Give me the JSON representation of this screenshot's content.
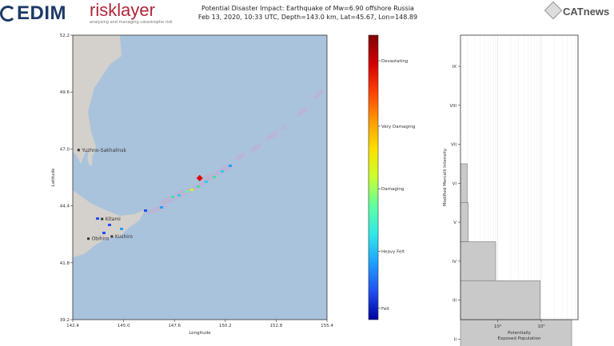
{
  "header": {
    "cedim_logo": "EDIM",
    "risklayer_logo": "risklayer",
    "risklayer_tagline": "analysing and managing catastrophe risk",
    "catnews_logo": "CATnews",
    "title_line1": "Potential Disaster Impact: Earthquake of Mw=6.90 offshore Russia",
    "title_line2": "Feb 13, 2020, 10:33 UTC, Depth=143.0 km, Lat=45.67, Lon=148.89"
  },
  "chart_data": [
    {
      "type": "map",
      "xlabel": "Longitude",
      "ylabel": "Latitude",
      "xlim": [
        142.4,
        155.4
      ],
      "ylim": [
        39.2,
        52.2
      ],
      "x_ticks": [
        "142.4",
        "145.0",
        "147.6",
        "150.2",
        "152.8",
        "155.4"
      ],
      "y_ticks": [
        "52.2",
        "49.6",
        "47.0",
        "44.4",
        "41.8",
        "39.2"
      ],
      "epicenter": {
        "lon": 148.89,
        "lat": 45.67
      },
      "place_labels": [
        {
          "name": "Yuzhno-Sakhalinsk",
          "lon": 142.7,
          "lat": 46.95
        },
        {
          "name": "Kitami",
          "lon": 143.9,
          "lat": 43.8
        },
        {
          "name": "Kushiro",
          "lon": 144.4,
          "lat": 43.0
        },
        {
          "name": "Obihiro",
          "lon": 143.2,
          "lat": 42.9
        }
      ],
      "colors": {
        "sea": "#a9c3dc",
        "land": "#d4d0cc"
      }
    },
    {
      "type": "colorbar",
      "labels": [
        "Devastating",
        "Very Damaging",
        "Damaging",
        "Heavy Felt",
        "Felt"
      ],
      "label_positions": [
        0.91,
        0.68,
        0.46,
        0.24,
        0.04
      ],
      "colors_top_to_bottom": [
        "#800000",
        "#d40000",
        "#ff4000",
        "#ff9800",
        "#ffe000",
        "#c8ff30",
        "#60ffa0",
        "#30e8e8",
        "#1ea0ff",
        "#2050f0",
        "#0000a0"
      ]
    },
    {
      "type": "bar",
      "orientation": "horizontal",
      "xlabel": "Potentially Exposed Population",
      "ylabel": "Modified Mercalli Intensity",
      "x_scale": "log",
      "x_ticks": [
        "10⁴",
        "10⁵"
      ],
      "xlim": [
        1400,
        700000
      ],
      "categories": [
        "II",
        "III",
        "IV",
        "V",
        "VI",
        "VII",
        "VIII",
        "IX"
      ],
      "values": [
        500000,
        95000,
        9000,
        2100,
        2000,
        0,
        0,
        0
      ],
      "ylim": [
        2.5,
        9.8
      ],
      "grid": true
    }
  ]
}
